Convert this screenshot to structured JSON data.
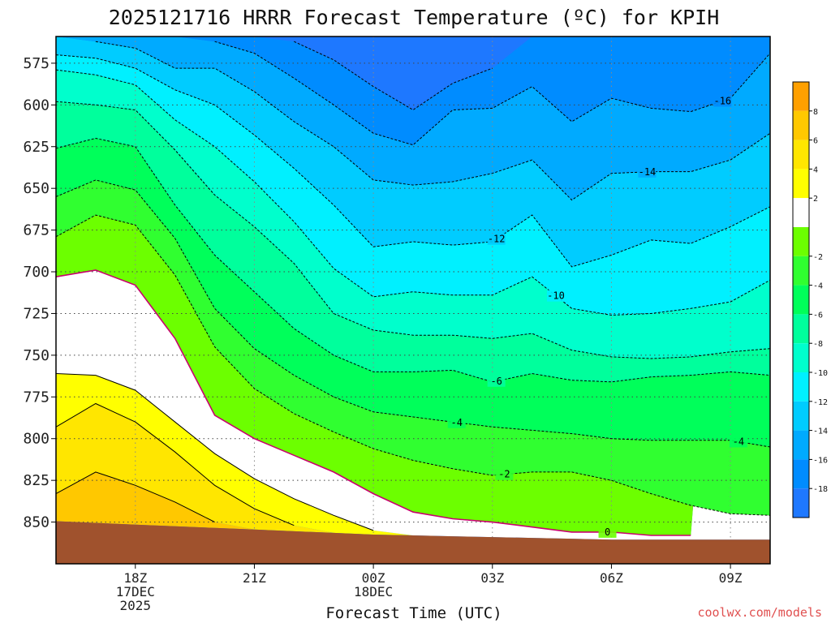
{
  "chart_data": {
    "type": "contour",
    "title": "2025121716 HRRR Forecast Temperature (ºC) for KPIH",
    "xlabel": "Forecast Time (UTC)",
    "ylabel": "",
    "credit": "coolwx.com/models",
    "x_ticks": [
      {
        "hour": 18,
        "lines": [
          "18Z",
          "17DEC",
          "2025"
        ]
      },
      {
        "hour": 21,
        "lines": [
          "21Z"
        ]
      },
      {
        "hour": 24,
        "lines": [
          "00Z",
          "18DEC"
        ]
      },
      {
        "hour": 27,
        "lines": [
          "03Z"
        ]
      },
      {
        "hour": 30,
        "lines": [
          "06Z"
        ]
      },
      {
        "hour": 33,
        "lines": [
          "09Z"
        ]
      }
    ],
    "xlim_hours": [
      16,
      34
    ],
    "y_ticks": [
      575,
      600,
      625,
      650,
      675,
      700,
      725,
      750,
      775,
      800,
      825,
      850
    ],
    "ylim_hpa": [
      559,
      875
    ],
    "hours": [
      16,
      17,
      18,
      19,
      20,
      21,
      22,
      23,
      24,
      25,
      26,
      27,
      28,
      29,
      30,
      31,
      32,
      33,
      34
    ],
    "terrain_hpa": [
      849.5,
      850.5,
      851.5,
      852.5,
      853.5,
      854.5,
      855.5,
      856.5,
      857.5,
      858.0,
      858.5,
      859.0,
      859.5,
      860.0,
      860.5,
      860.5,
      860.5,
      860.5,
      860.5
    ],
    "color_levels": [
      -20,
      -18,
      -16,
      -14,
      -12,
      -10,
      -8,
      -6,
      -4,
      -2,
      0,
      2,
      4,
      6,
      8,
      10
    ],
    "colors": [
      "#1e78ff",
      "#008cff",
      "#00aaff",
      "#00ccff",
      "#00f0ff",
      "#00ffcc",
      "#00ff9c",
      "#00ff5a",
      "#30ff30",
      "#6cff00",
      "#ffffff",
      "#ffff00",
      "#ffe600",
      "#ffc800",
      "#ffa000"
    ],
    "colorbar_labels": [
      8,
      6,
      4,
      2,
      -2,
      -4,
      -6,
      -8,
      -10,
      -12,
      -14,
      -16,
      -18
    ],
    "contour_levels": [
      -18,
      -16,
      -14,
      -12,
      -10,
      -8,
      -6,
      -4,
      -2,
      0,
      2,
      4,
      6
    ],
    "freezing_color": "#c8006e",
    "terrain_color": "#a0522d",
    "contour_labels": [
      {
        "level": -16,
        "text": "-16"
      },
      {
        "level": -14,
        "text": "-14"
      },
      {
        "level": -12,
        "text": "-12"
      },
      {
        "level": -10,
        "text": "-10"
      },
      {
        "level": -6,
        "text": "-6"
      },
      {
        "level": -4,
        "text": "-4"
      },
      {
        "level": -4,
        "text": "-4"
      },
      {
        "level": -2,
        "text": "-2"
      },
      {
        "level": 0,
        "text": "0"
      }
    ],
    "isotherms_hpa": {
      "6": [
        833,
        820,
        828,
        838,
        850,
        858,
        null,
        null,
        null,
        null,
        null,
        null,
        null,
        null,
        null,
        null,
        null,
        null,
        null
      ],
      "4": [
        793,
        779,
        790,
        808,
        828,
        842,
        852,
        858,
        null,
        null,
        null,
        null,
        null,
        null,
        null,
        null,
        null,
        null,
        null
      ],
      "2": [
        761,
        762,
        771,
        790,
        809,
        824,
        836,
        846,
        855,
        null,
        null,
        null,
        null,
        null,
        null,
        null,
        null,
        null,
        null
      ],
      "0": [
        703,
        699,
        708,
        740,
        786,
        800,
        810,
        820,
        833,
        844,
        848,
        850,
        853,
        856,
        856,
        858,
        858,
        null,
        null
      ],
      "-2": [
        679,
        666,
        672,
        702,
        745,
        770,
        785,
        796,
        806,
        813,
        818,
        822,
        820,
        820,
        825,
        833,
        840,
        845,
        846
      ],
      "-4": [
        655,
        645,
        651,
        680,
        722,
        746,
        762,
        775,
        784,
        787,
        790,
        793,
        795,
        797,
        800,
        801,
        801,
        801,
        805
      ],
      "-6": [
        626,
        620,
        625,
        660,
        690,
        712,
        734,
        750,
        760,
        760,
        759,
        766,
        761,
        765,
        766,
        763,
        762,
        760,
        762
      ],
      "-8": [
        598,
        600,
        603,
        627,
        654,
        673,
        695,
        725,
        735,
        738,
        738,
        740,
        737,
        747,
        751,
        752,
        751,
        748,
        746
      ],
      "-10": [
        579,
        582,
        588,
        609,
        625,
        646,
        670,
        698,
        715,
        712,
        714,
        714,
        703,
        722,
        726,
        725,
        722,
        718,
        705
      ],
      "-12": [
        570,
        572,
        578,
        591,
        600,
        618,
        638,
        660,
        685,
        682,
        684,
        682,
        666,
        697,
        690,
        681,
        683,
        673,
        661
      ],
      "-14": [
        null,
        562,
        566,
        578,
        578,
        592,
        610,
        625,
        645,
        648,
        646,
        641,
        633,
        657,
        641,
        640,
        640,
        633,
        617
      ],
      "-16": [
        null,
        null,
        null,
        null,
        562,
        569,
        584,
        600,
        617,
        624,
        603,
        602,
        589,
        610,
        596,
        602,
        604,
        596,
        569
      ],
      "-18": [
        null,
        null,
        null,
        null,
        null,
        null,
        562,
        573,
        589,
        603,
        587,
        578,
        null,
        null,
        null,
        null,
        null,
        null,
        null
      ]
    }
  }
}
